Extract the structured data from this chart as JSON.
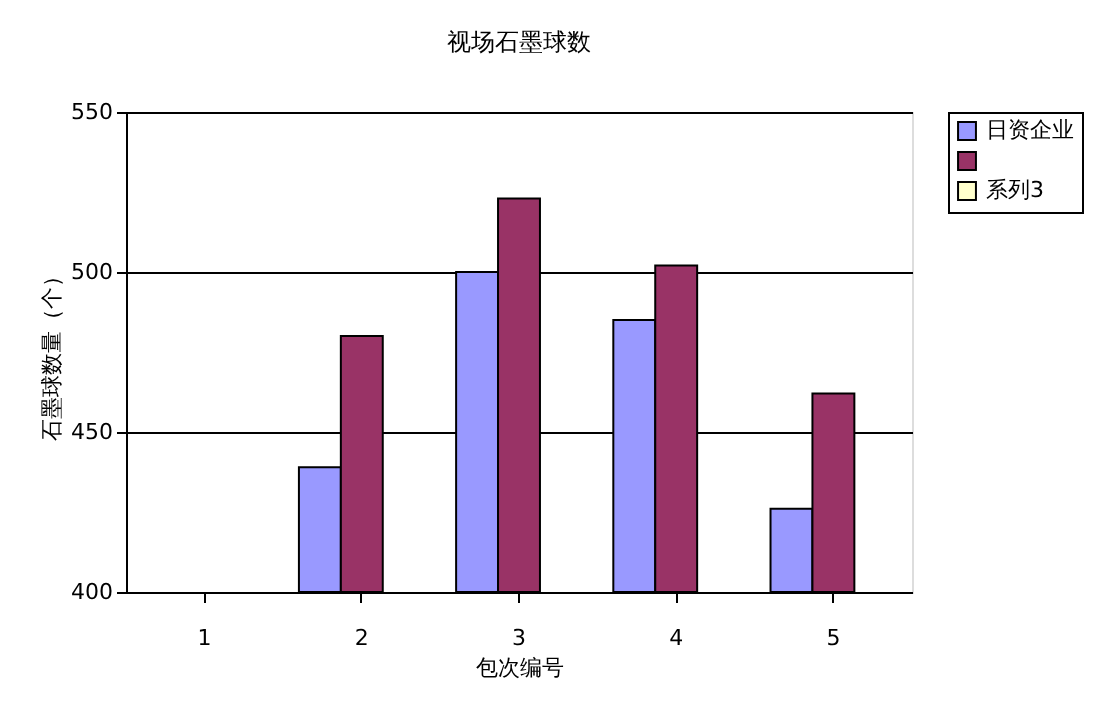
{
  "chart_data": {
    "type": "bar",
    "title": "视场石墨球数",
    "xlabel": "包次编号",
    "ylabel": "石墨球数量（个）",
    "categories": [
      "1",
      "2",
      "3",
      "4",
      "5"
    ],
    "series": [
      {
        "name": "日资企业",
        "color": "#9999ff",
        "values": [
          null,
          439,
          500,
          485,
          426
        ]
      },
      {
        "color": "#993366",
        "values": [
          null,
          480,
          523,
          502,
          462
        ]
      },
      {
        "name": "系列3",
        "color": "#ffffcc",
        "values": [
          null,
          null,
          null,
          null,
          null
        ]
      }
    ],
    "ylim": [
      400,
      550
    ],
    "yticks": [
      400,
      450,
      500,
      550
    ],
    "grid": "y",
    "legend": "right"
  }
}
